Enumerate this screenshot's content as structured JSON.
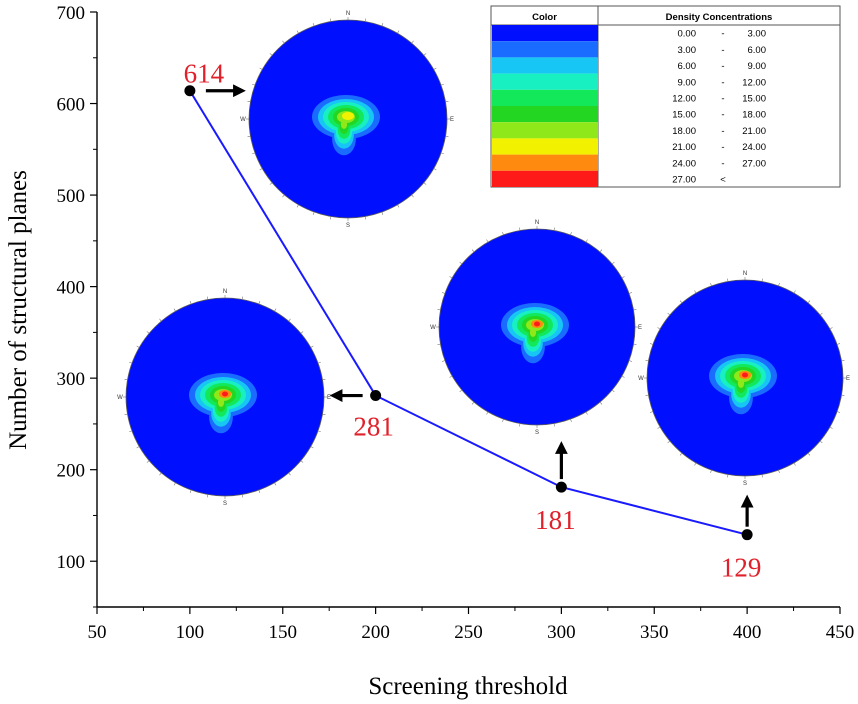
{
  "chart_data": {
    "type": "line",
    "xlabel": "Screening threshold",
    "ylabel": "Number of structural planes",
    "xlim": [
      50,
      450
    ],
    "ylim": [
      50,
      700
    ],
    "xticks": [
      50,
      100,
      150,
      200,
      250,
      300,
      350,
      400,
      450
    ],
    "yticks": [
      100,
      200,
      300,
      400,
      500,
      600,
      700
    ],
    "series": [
      {
        "name": "structural planes",
        "color": "#1a1aff",
        "x": [
          100,
          200,
          300,
          400
        ],
        "y": [
          614,
          281,
          181,
          129
        ],
        "labels": [
          "614",
          "281",
          "181",
          "129"
        ],
        "label_color": "#e0202a"
      }
    ],
    "stereonets": [
      {
        "threshold": 100,
        "planes": 614,
        "compass": [
          "N",
          "E",
          "S",
          "W"
        ]
      },
      {
        "threshold": 200,
        "planes": 281,
        "compass": [
          "N",
          "E",
          "S",
          "W"
        ]
      },
      {
        "threshold": 300,
        "planes": 181,
        "compass": [
          "N",
          "E",
          "S",
          "W"
        ]
      },
      {
        "threshold": 400,
        "planes": 129,
        "compass": [
          "N",
          "E",
          "S",
          "W"
        ]
      }
    ],
    "legend": {
      "headers": [
        "Color",
        "Density Concentrations"
      ],
      "rows": [
        {
          "color": "#0010ff",
          "from": "0.00",
          "sep": "-",
          "to": "3.00"
        },
        {
          "color": "#1a6bff",
          "from": "3.00",
          "sep": "-",
          "to": "6.00"
        },
        {
          "color": "#17c6f5",
          "from": "6.00",
          "sep": "-",
          "to": "9.00"
        },
        {
          "color": "#19f0c2",
          "from": "9.00",
          "sep": "-",
          "to": "12.00"
        },
        {
          "color": "#12e85a",
          "from": "12.00",
          "sep": "-",
          "to": "15.00"
        },
        {
          "color": "#22d622",
          "from": "15.00",
          "sep": "-",
          "to": "18.00"
        },
        {
          "color": "#8fe81a",
          "from": "18.00",
          "sep": "-",
          "to": "21.00"
        },
        {
          "color": "#f2f200",
          "from": "21.00",
          "sep": "-",
          "to": "24.00"
        },
        {
          "color": "#ff8a10",
          "from": "24.00",
          "sep": "-",
          "to": "27.00"
        },
        {
          "color": "#ff1a1a",
          "from": "27.00",
          "sep": "<",
          "to": ""
        }
      ]
    }
  }
}
